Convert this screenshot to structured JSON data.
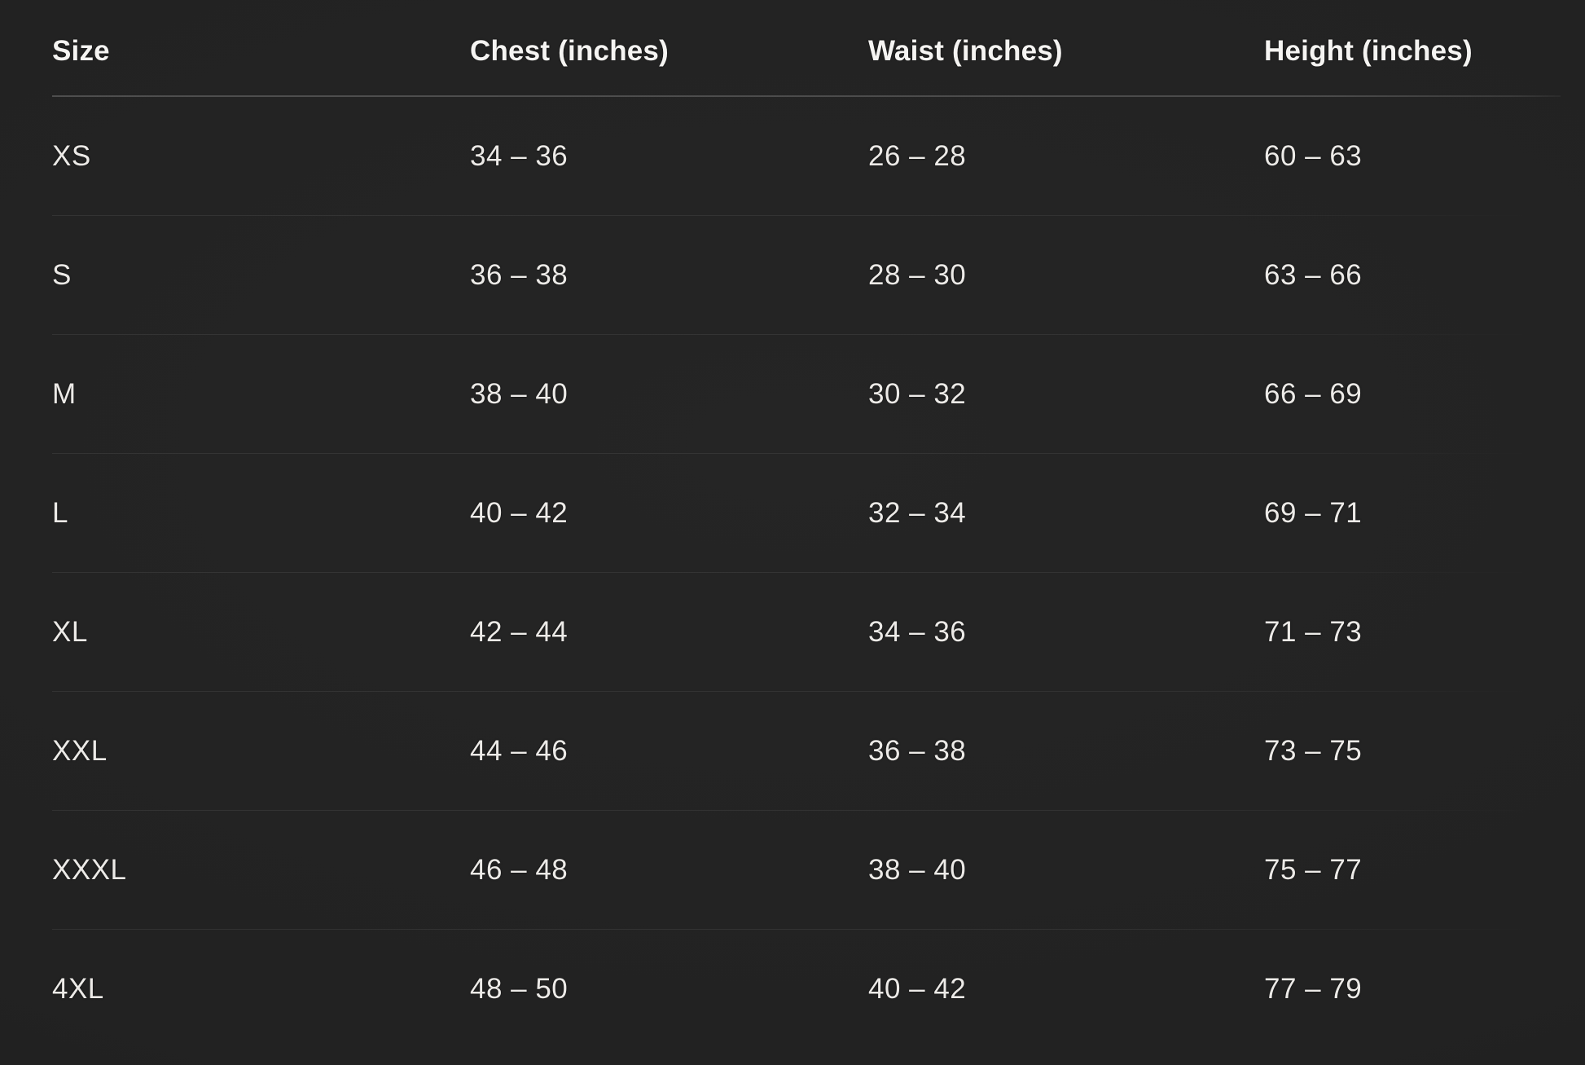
{
  "table": {
    "columns": [
      {
        "label": "Size"
      },
      {
        "label": "Chest (inches)"
      },
      {
        "label": "Waist (inches)"
      },
      {
        "label": "Height (inches)"
      }
    ],
    "rows": [
      {
        "size": "XS",
        "chest": "34 – 36",
        "waist": "26 – 28",
        "height": "60 – 63"
      },
      {
        "size": "S",
        "chest": "36 – 38",
        "waist": "28 – 30",
        "height": "63 – 66"
      },
      {
        "size": "M",
        "chest": "38 – 40",
        "waist": "30 – 32",
        "height": "66 – 69"
      },
      {
        "size": "L",
        "chest": "40 – 42",
        "waist": "32 – 34",
        "height": "69 – 71"
      },
      {
        "size": "XL",
        "chest": "42 – 44",
        "waist": "34 – 36",
        "height": "71 – 73"
      },
      {
        "size": "XXL",
        "chest": "44 – 46",
        "waist": "36 – 38",
        "height": "73 – 75"
      },
      {
        "size": "XXXL",
        "chest": "46 – 48",
        "waist": "38 – 40",
        "height": "75 – 77"
      },
      {
        "size": "4XL",
        "chest": "48 – 50",
        "waist": "40 – 42",
        "height": "77 – 79"
      }
    ]
  },
  "colors": {
    "background": "#222222",
    "text": "#eceae7",
    "header_text": "#f5f4f2",
    "header_divider": "#555555",
    "row_divider": "#2e2e2e"
  }
}
